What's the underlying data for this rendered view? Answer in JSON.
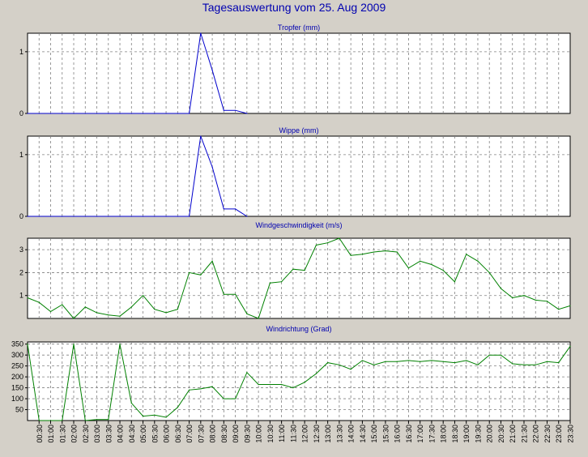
{
  "title": "Tagesauswertung vom 25. Aug 2009",
  "colors": {
    "background": "#d4d0c8",
    "plot_background": "#ffffff",
    "title": "#0000b0",
    "grid": "#808080",
    "rain_series": "#0000cc",
    "wind_series": "#008000",
    "axis": "#000000"
  },
  "chart_data": [
    {
      "type": "line",
      "title": "Tropfer (mm)",
      "ylim": [
        0,
        1.3
      ],
      "yticks": [
        0,
        1
      ],
      "grid": true,
      "x": [
        "00:00",
        "00:30",
        "01:00",
        "01:30",
        "02:00",
        "02:30",
        "03:00",
        "03:30",
        "04:00",
        "04:30",
        "05:00",
        "05:30",
        "06:00",
        "06:30",
        "07:00",
        "07:30",
        "08:00",
        "08:30",
        "09:00",
        "09:30"
      ],
      "values": [
        0,
        0,
        0,
        0,
        0,
        0,
        0,
        0,
        0,
        0,
        0,
        0,
        0,
        0,
        0,
        1.3,
        0.7,
        0.05,
        0.05,
        0
      ]
    },
    {
      "type": "line",
      "title": "Wippe (mm)",
      "ylim": [
        0,
        1.3
      ],
      "yticks": [
        0,
        1
      ],
      "grid": true,
      "x": [
        "00:00",
        "00:30",
        "01:00",
        "01:30",
        "02:00",
        "02:30",
        "03:00",
        "03:30",
        "04:00",
        "04:30",
        "05:00",
        "05:30",
        "06:00",
        "06:30",
        "07:00",
        "07:30",
        "08:00",
        "08:30",
        "09:00",
        "09:30"
      ],
      "values": [
        0,
        0,
        0,
        0,
        0,
        0,
        0,
        0,
        0,
        0,
        0,
        0,
        0,
        0,
        0,
        1.3,
        0.8,
        0.12,
        0.12,
        0
      ]
    },
    {
      "type": "line",
      "title": "Windgeschwindigkeit (m/s)",
      "ylim": [
        0,
        3.5
      ],
      "yticks": [
        1,
        2,
        3
      ],
      "grid": true,
      "x": [
        "00:00",
        "00:30",
        "01:00",
        "01:30",
        "02:00",
        "02:30",
        "03:00",
        "03:30",
        "04:00",
        "04:30",
        "05:00",
        "05:30",
        "06:00",
        "06:30",
        "07:00",
        "07:30",
        "08:00",
        "08:30",
        "09:00",
        "09:30",
        "10:00",
        "10:30",
        "11:00",
        "11:30",
        "12:00",
        "12:30",
        "13:00",
        "13:30",
        "14:00",
        "14:30",
        "15:00",
        "15:30",
        "16:00",
        "16:30",
        "17:00",
        "17:30",
        "18:00",
        "18:30",
        "19:00",
        "19:30",
        "20:00",
        "20:30",
        "21:00",
        "21:30",
        "22:00",
        "22:30",
        "23:00",
        "23:30"
      ],
      "values": [
        0.9,
        0.7,
        0.3,
        0.6,
        0.0,
        0.5,
        0.25,
        0.15,
        0.1,
        0.5,
        1.0,
        0.4,
        0.25,
        0.4,
        2.0,
        1.9,
        2.5,
        1.05,
        1.05,
        0.2,
        0.0,
        1.55,
        1.6,
        2.15,
        2.1,
        3.2,
        3.3,
        3.5,
        2.75,
        2.8,
        2.9,
        2.95,
        2.9,
        2.2,
        2.5,
        2.35,
        2.1,
        1.6,
        2.8,
        2.5,
        2.0,
        1.3,
        0.9,
        1.0,
        0.8,
        0.75,
        0.4,
        0.55
      ]
    },
    {
      "type": "line",
      "title": "Windrichtung (Grad)",
      "ylim": [
        0,
        360
      ],
      "yticks": [
        50,
        100,
        150,
        200,
        250,
        300,
        350
      ],
      "grid": true,
      "x": [
        "00:00",
        "00:30",
        "01:00",
        "01:30",
        "02:00",
        "02:30",
        "03:00",
        "03:30",
        "04:00",
        "04:30",
        "05:00",
        "05:30",
        "06:00",
        "06:30",
        "07:00",
        "07:30",
        "08:00",
        "08:30",
        "09:00",
        "09:30",
        "10:00",
        "10:30",
        "11:00",
        "11:30",
        "12:00",
        "12:30",
        "13:00",
        "13:30",
        "14:00",
        "14:30",
        "15:00",
        "15:30",
        "16:00",
        "16:30",
        "17:00",
        "17:30",
        "18:00",
        "18:30",
        "19:00",
        "19:30",
        "20:00",
        "20:30",
        "21:00",
        "21:30",
        "22:00",
        "22:30",
        "23:00",
        "23:30"
      ],
      "values": [
        350,
        0,
        0,
        0,
        350,
        0,
        5,
        5,
        350,
        80,
        20,
        25,
        15,
        60,
        140,
        145,
        155,
        100,
        100,
        220,
        165,
        165,
        165,
        150,
        175,
        215,
        265,
        255,
        235,
        275,
        255,
        270,
        270,
        275,
        270,
        275,
        270,
        265,
        275,
        255,
        300,
        300,
        260,
        255,
        255,
        270,
        265,
        340
      ]
    }
  ],
  "x_axis_ticks": [
    "00:30",
    "01:00",
    "01:30",
    "02:00",
    "02:30",
    "03:00",
    "03:30",
    "04:00",
    "04:30",
    "05:00",
    "05:30",
    "06:00",
    "06:30",
    "07:00",
    "07:30",
    "08:00",
    "08:30",
    "09:00",
    "09:30",
    "10:00",
    "10:30",
    "11:00",
    "11:30",
    "12:00",
    "12:30",
    "13:00",
    "13:30",
    "14:00",
    "14:30",
    "15:00",
    "15:30",
    "16:00",
    "16:30",
    "17:00",
    "17:30",
    "18:00",
    "18:30",
    "19:00",
    "19:30",
    "20:00",
    "20:30",
    "21:00",
    "21:30",
    "22:00",
    "22:30",
    "23:00",
    "23:30"
  ]
}
